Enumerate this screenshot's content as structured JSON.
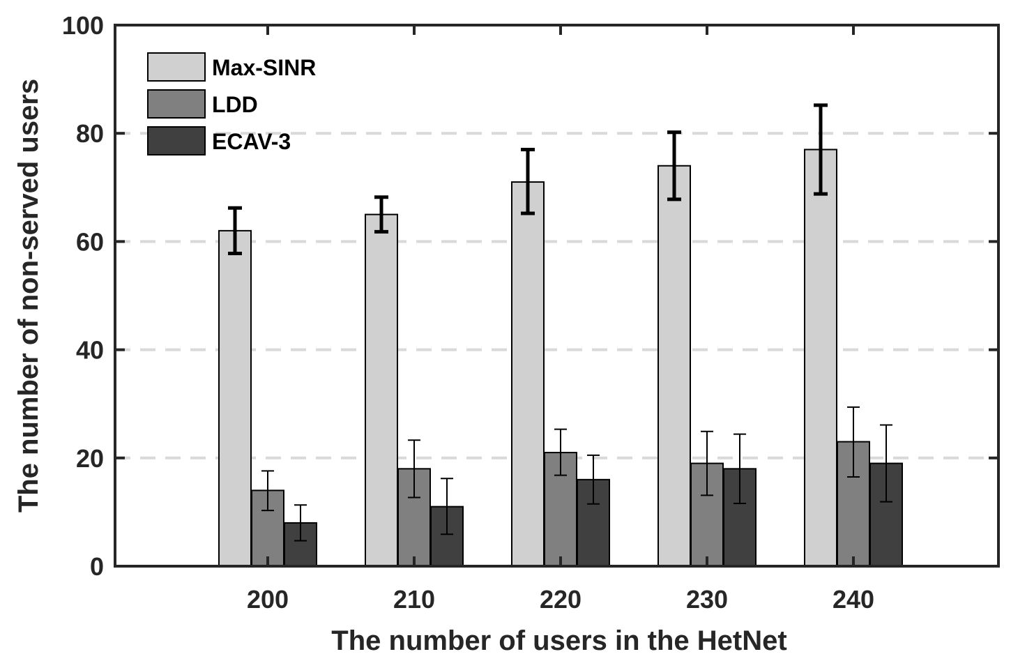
{
  "chart_data": {
    "type": "bar",
    "title": "",
    "xlabel": "The number of users in the HetNet",
    "ylabel": "The number of non-served users",
    "categories": [
      "200",
      "210",
      "220",
      "230",
      "240"
    ],
    "ylim": [
      0,
      100
    ],
    "yticks": [
      0,
      20,
      40,
      60,
      80,
      100
    ],
    "ytick_labels": [
      "0",
      "20",
      "40",
      "60",
      "80",
      "100"
    ],
    "grid": "horizontal dashed",
    "legend_position": "top-left",
    "series": [
      {
        "name": "Max-SINR",
        "color": "#d0d0d0",
        "values": [
          62,
          65,
          71,
          74,
          77
        ],
        "error_low": [
          57.8,
          61.8,
          65.2,
          67.8,
          68.8
        ],
        "error_high": [
          66.2,
          68.2,
          77.0,
          80.2,
          85.2
        ],
        "error_style": "bold"
      },
      {
        "name": "LDD",
        "color": "#808080",
        "values": [
          14,
          18,
          21,
          19,
          23
        ],
        "error_low": [
          10.3,
          12.7,
          16.8,
          13.1,
          16.5
        ],
        "error_high": [
          17.6,
          23.3,
          25.3,
          24.9,
          29.4
        ],
        "error_style": "thin"
      },
      {
        "name": "ECAV-3",
        "color": "#404040",
        "values": [
          8,
          11,
          16,
          18,
          19
        ],
        "error_low": [
          4.7,
          5.9,
          11.5,
          11.6,
          11.9
        ],
        "error_high": [
          11.3,
          16.2,
          20.5,
          24.4,
          26.1
        ],
        "error_style": "thin"
      }
    ]
  }
}
